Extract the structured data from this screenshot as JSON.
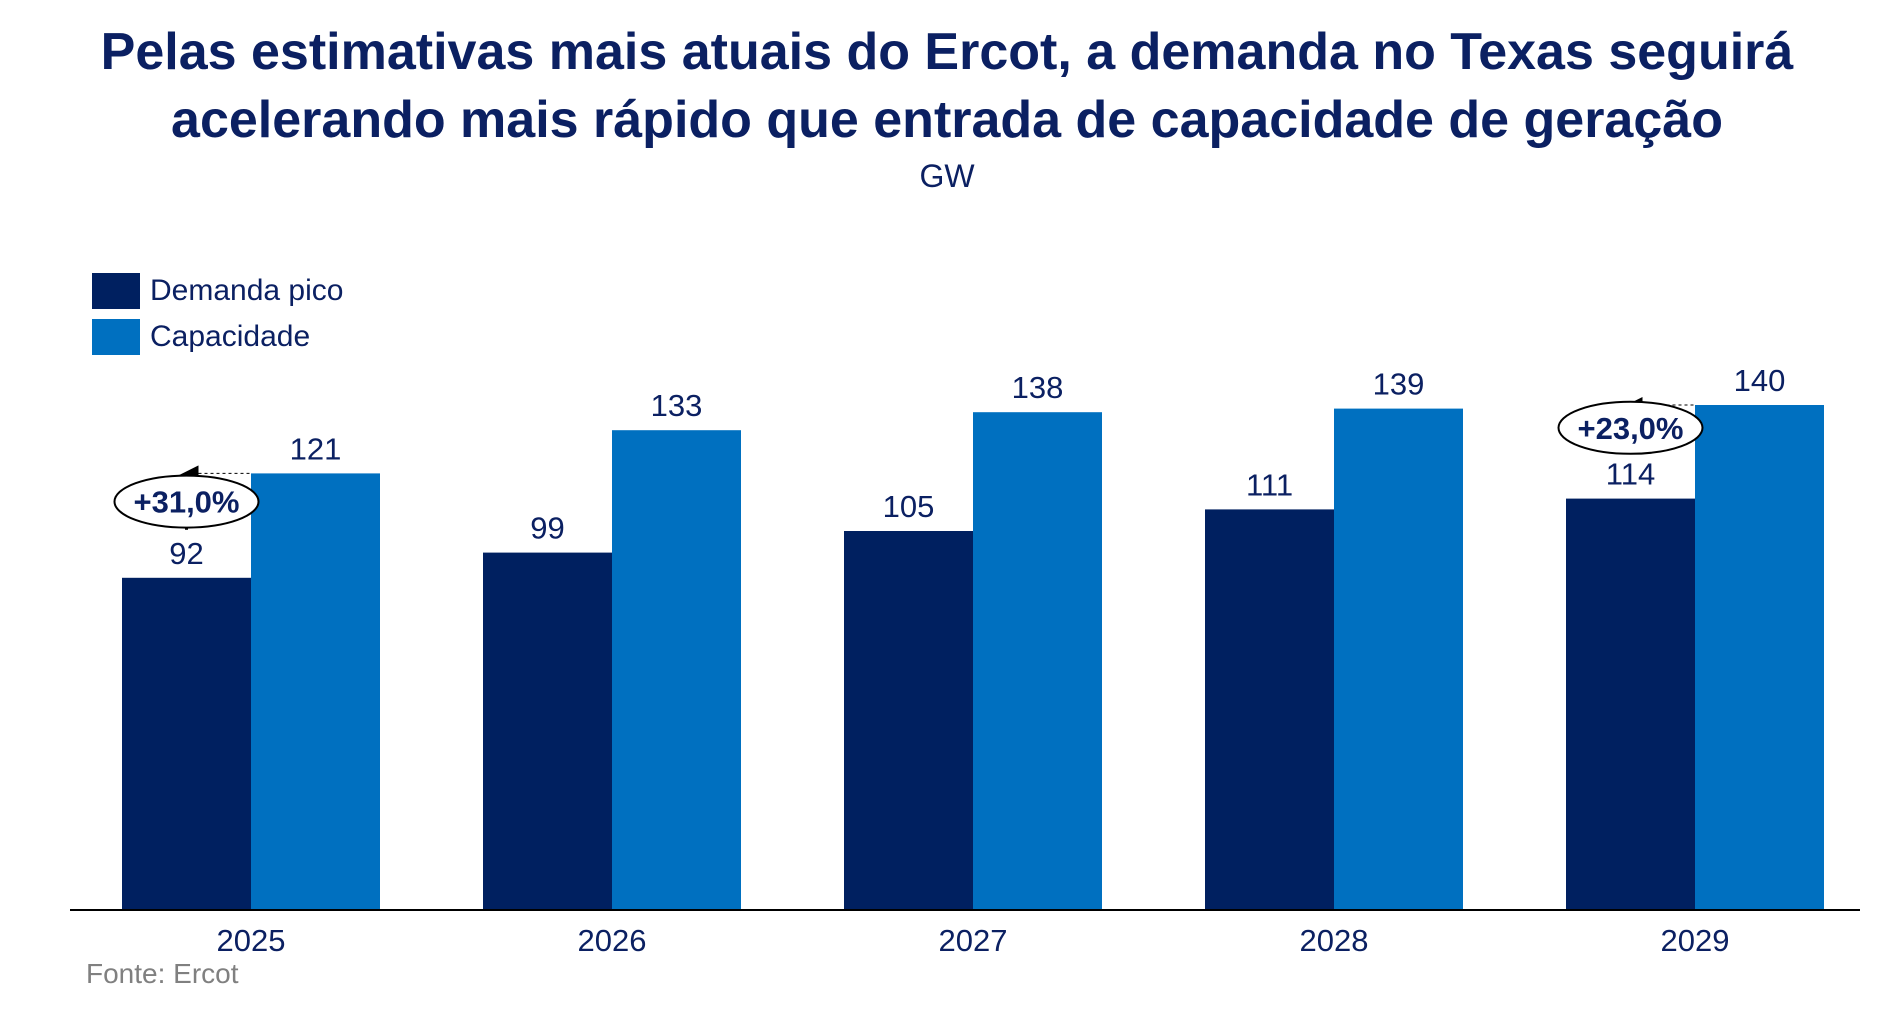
{
  "title": "Pelas estimativas mais atuais do Ercot, a demanda no Texas seguirá acelerando mais rápido que entrada de capacidade de geração",
  "subtitle": "GW",
  "source": "Fonte: Ercot",
  "colors": {
    "demand": "#002060",
    "capacity": "#0070c0",
    "text": "#0b2062"
  },
  "chart_data": {
    "type": "bar",
    "categories": [
      "2025",
      "2026",
      "2027",
      "2028",
      "2029"
    ],
    "series": [
      {
        "name": "Demanda pico",
        "values": [
          92,
          99,
          105,
          111,
          114
        ]
      },
      {
        "name": "Capacidade",
        "values": [
          121,
          133,
          138,
          139,
          140
        ]
      }
    ],
    "ylim": [
      0,
      140
    ],
    "legend_position": "top-left",
    "annotations": [
      {
        "category": "2025",
        "text": "+31,0%"
      },
      {
        "category": "2029",
        "text": "+23,0%"
      }
    ]
  }
}
